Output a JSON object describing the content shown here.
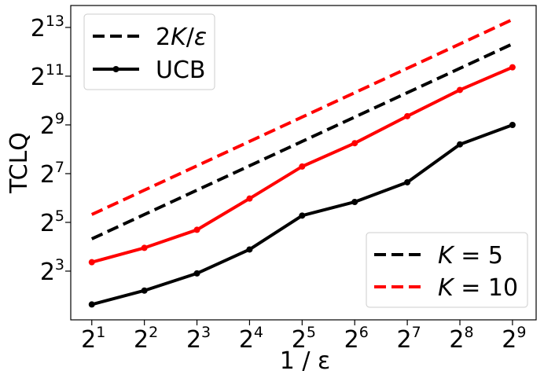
{
  "chart_data": {
    "type": "line",
    "xlabel": "1 / ε",
    "ylabel": "TCLQ",
    "x_scale": "log2",
    "y_scale": "log2",
    "x": [
      2,
      4,
      8,
      16,
      32,
      64,
      128,
      256,
      512
    ],
    "x_tick_labels": [
      "2^1",
      "2^2",
      "2^3",
      "2^4",
      "2^5",
      "2^6",
      "2^7",
      "2^8",
      "2^9"
    ],
    "y_tick_labels": [
      "2^3",
      "2^5",
      "2^7",
      "2^9",
      "2^11",
      "2^13"
    ],
    "xlim_exp": [
      0.6,
      9.45
    ],
    "ylim_exp": [
      1.0,
      13.9
    ],
    "grid": false,
    "series": [
      {
        "name": "K = 5",
        "style": "dashed",
        "color": "#000000",
        "values": [
          20,
          40,
          80,
          160,
          320,
          640,
          1280,
          2560,
          5120
        ]
      },
      {
        "name": "K = 10",
        "style": "dashed",
        "color": "#ff0000",
        "values": [
          40,
          80,
          160,
          320,
          640,
          1280,
          2560,
          5120,
          10240
        ]
      },
      {
        "name": "K = 5",
        "style": "solid-marker",
        "color": "#000000",
        "values": [
          3.1,
          4.6,
          7.5,
          14.8,
          38.8,
          57.2,
          100.1,
          294.3,
          511.2
        ]
      },
      {
        "name": "K = 10",
        "style": "solid-marker",
        "color": "#ff0000",
        "values": [
          10.3,
          15.5,
          25.9,
          63.0,
          156.8,
          304.4,
          656.4,
          1384.0,
          2636.3
        ]
      }
    ],
    "legend_style": {
      "position": "top-left",
      "entries": [
        {
          "label_parts": [
            "2",
            "K",
            "/",
            "ε"
          ],
          "style": "dashed",
          "color": "#000000"
        },
        {
          "label_parts": [
            "UCB"
          ],
          "style": "solid-marker",
          "color": "#000000"
        }
      ]
    },
    "legend_k": {
      "position": "bottom-right",
      "entries": [
        {
          "label_parts": [
            "K",
            " = 5"
          ],
          "style": "dashed",
          "color": "#000000"
        },
        {
          "label_parts": [
            "K",
            " = 10"
          ],
          "style": "dashed",
          "color": "#ff0000"
        }
      ]
    }
  }
}
